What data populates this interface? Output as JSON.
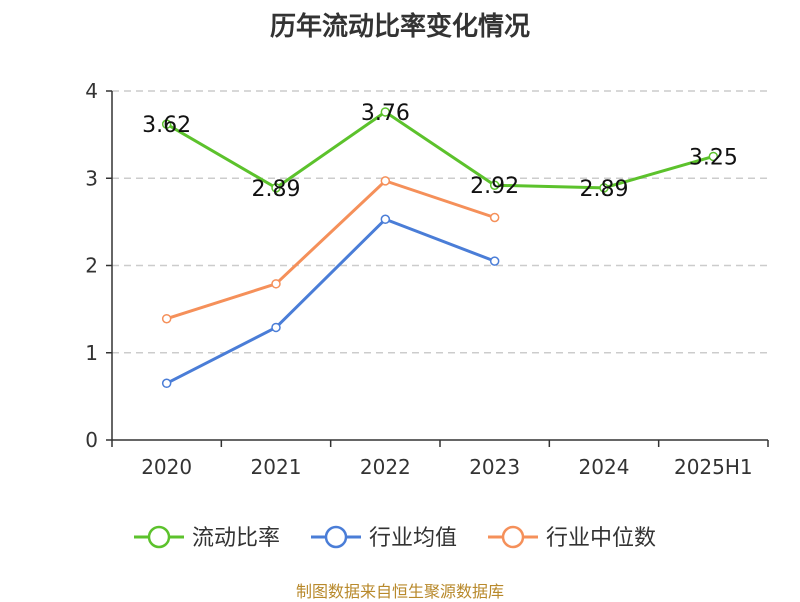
{
  "title": "历年流动比率变化情况",
  "source": "制图数据来自恒生聚源数据库",
  "chart_data": {
    "type": "line",
    "title": "历年流动比率变化情况",
    "categories": [
      "2020",
      "2021",
      "2022",
      "2023",
      "2024",
      "2025H1"
    ],
    "ylim": [
      0,
      4
    ],
    "yticks": [
      "0",
      "1",
      "2",
      "3",
      "4"
    ],
    "grid": true,
    "legend_position": "bottom",
    "series": [
      {
        "name": "流动比率",
        "color": "#5cc22c",
        "values": [
          3.62,
          2.89,
          3.76,
          2.92,
          2.89,
          3.25
        ],
        "labels": [
          "3.62",
          "2.89",
          "3.76",
          "2.92",
          "2.89",
          "3.25"
        ]
      },
      {
        "name": "行业均值",
        "color": "#4a7dd7",
        "values": [
          0.65,
          1.29,
          2.53,
          2.05,
          null,
          null
        ]
      },
      {
        "name": "行业中位数",
        "color": "#f5905a",
        "values": [
          1.39,
          1.79,
          2.97,
          2.55,
          null,
          null
        ]
      }
    ]
  }
}
